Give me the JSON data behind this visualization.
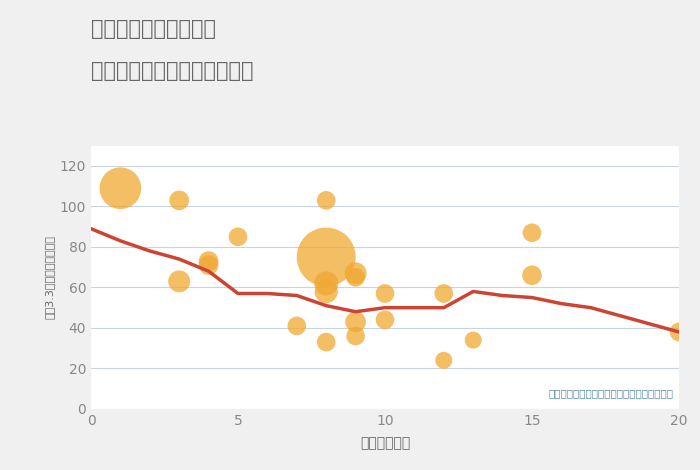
{
  "title_line1": "奈良県橿原市別所町の",
  "title_line2": "駅距離別中古マンション価格",
  "xlabel": "駅距離（分）",
  "ylabel": "坪（3.3㎡）単価（万円）",
  "annotation": "円の大きさは、取引のあった物件面積を示す",
  "scatter_x": [
    1,
    3,
    3,
    4,
    4,
    5,
    7,
    8,
    8,
    8,
    8,
    8,
    9,
    9,
    9,
    9,
    10,
    10,
    12,
    12,
    13,
    15,
    15,
    20
  ],
  "scatter_y": [
    109,
    103,
    63,
    73,
    71,
    85,
    41,
    103,
    75,
    62,
    58,
    33,
    65,
    67,
    43,
    36,
    57,
    44,
    57,
    24,
    34,
    87,
    66,
    38
  ],
  "scatter_size": [
    900,
    200,
    250,
    200,
    200,
    180,
    180,
    180,
    1800,
    300,
    280,
    180,
    180,
    250,
    220,
    180,
    180,
    180,
    180,
    150,
    150,
    180,
    200,
    180
  ],
  "scatter_color": "#F0A830",
  "scatter_alpha": 0.75,
  "line_x": [
    0,
    1,
    2,
    3,
    4,
    5,
    6,
    7,
    8,
    9,
    10,
    11,
    12,
    13,
    14,
    15,
    16,
    17,
    18,
    19,
    20
  ],
  "line_y": [
    89,
    83,
    78,
    74,
    68,
    57,
    57,
    56,
    51,
    48,
    50,
    50,
    50,
    58,
    56,
    55,
    52,
    50,
    46,
    42,
    38
  ],
  "line_color": "#CC4433",
  "line_width": 2.5,
  "xlim": [
    0,
    20
  ],
  "ylim": [
    0,
    130
  ],
  "yticks": [
    0,
    20,
    40,
    60,
    80,
    100,
    120
  ],
  "xticks": [
    0,
    5,
    10,
    15,
    20
  ],
  "background_color": "#f0f0f0",
  "plot_background": "#ffffff",
  "grid_color": "#c8d4e0",
  "title_color": "#666666",
  "annotation_color": "#5588aa",
  "label_color": "#666666",
  "tick_color": "#888888"
}
